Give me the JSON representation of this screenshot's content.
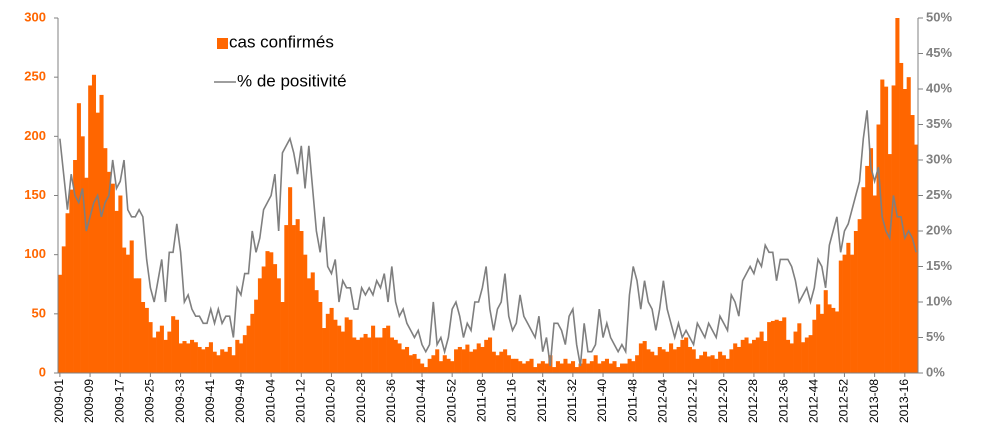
{
  "chart_data": {
    "type": "bar",
    "categories": [
      "2009-01",
      null,
      null,
      null,
      null,
      null,
      null,
      null,
      "2009-09",
      null,
      null,
      null,
      null,
      null,
      null,
      null,
      "2009-17",
      null,
      null,
      null,
      null,
      null,
      null,
      null,
      "2009-25",
      null,
      null,
      null,
      null,
      null,
      null,
      null,
      "2009-33",
      null,
      null,
      null,
      null,
      null,
      null,
      null,
      "2009-41",
      null,
      null,
      null,
      null,
      null,
      null,
      null,
      "2009-49",
      null,
      null,
      null,
      null,
      null,
      null,
      null,
      "2010-04",
      null,
      null,
      null,
      null,
      null,
      null,
      null,
      "2010-12",
      null,
      null,
      null,
      null,
      null,
      null,
      null,
      "2010-20",
      null,
      null,
      null,
      null,
      null,
      null,
      null,
      "2010-28",
      null,
      null,
      null,
      null,
      null,
      null,
      null,
      "2010-36",
      null,
      null,
      null,
      null,
      null,
      null,
      null,
      "2010-44",
      null,
      null,
      null,
      null,
      null,
      null,
      null,
      "2010-52",
      null,
      null,
      null,
      null,
      null,
      null,
      null,
      "2011-08",
      null,
      null,
      null,
      null,
      null,
      null,
      null,
      "2011-16",
      null,
      null,
      null,
      null,
      null,
      null,
      null,
      "2011-24",
      null,
      null,
      null,
      null,
      null,
      null,
      null,
      "2011-32",
      null,
      null,
      null,
      null,
      null,
      null,
      null,
      "2011-40",
      null,
      null,
      null,
      null,
      null,
      null,
      null,
      "2011-48",
      null,
      null,
      null,
      null,
      null,
      null,
      null,
      "2012-04",
      null,
      null,
      null,
      null,
      null,
      null,
      null,
      "2012-12",
      null,
      null,
      null,
      null,
      null,
      null,
      null,
      "2012-20",
      null,
      null,
      null,
      null,
      null,
      null,
      null,
      "2012-28",
      null,
      null,
      null,
      null,
      null,
      null,
      null,
      "2012-36",
      null,
      null,
      null,
      null,
      null,
      null,
      null,
      "2012-44",
      null,
      null,
      null,
      null,
      null,
      null,
      null,
      "2012-52",
      null,
      null,
      null,
      null,
      null,
      null,
      null,
      "2013-08",
      null,
      null,
      null,
      null,
      null,
      null,
      null,
      "2013-16",
      null,
      null,
      null
    ],
    "series": [
      {
        "name": "cas confirmés",
        "type": "bar",
        "color": "#ff6600",
        "values": [
          83,
          107,
          135,
          155,
          180,
          228,
          200,
          165,
          243,
          252,
          220,
          235,
          190,
          170,
          160,
          137,
          150,
          106,
          100,
          112,
          80,
          80,
          60,
          55,
          43,
          30,
          35,
          40,
          28,
          35,
          48,
          45,
          25,
          27,
          25,
          28,
          26,
          22,
          20,
          22,
          26,
          18,
          15,
          20,
          18,
          22,
          15,
          28,
          25,
          32,
          40,
          50,
          62,
          80,
          90,
          103,
          102,
          92,
          80,
          60,
          125,
          157,
          125,
          130,
          120,
          100,
          80,
          85,
          70,
          60,
          38,
          50,
          55,
          45,
          40,
          35,
          47,
          45,
          30,
          28,
          30,
          33,
          30,
          40,
          30,
          30,
          38,
          40,
          30,
          28,
          25,
          20,
          22,
          15,
          16,
          12,
          8,
          5,
          12,
          15,
          20,
          10,
          15,
          12,
          10,
          20,
          22,
          20,
          24,
          18,
          20,
          25,
          22,
          28,
          30,
          18,
          15,
          18,
          20,
          15,
          12,
          12,
          10,
          8,
          10,
          12,
          5,
          8,
          10,
          8,
          15,
          5,
          10,
          8,
          12,
          8,
          10,
          5,
          8,
          12,
          8,
          10,
          15,
          8,
          10,
          12,
          8,
          10,
          5,
          8,
          8,
          12,
          10,
          15,
          25,
          27,
          20,
          18,
          15,
          22,
          20,
          18,
          25,
          20,
          22,
          28,
          30,
          22,
          20,
          12,
          15,
          18,
          14,
          15,
          12,
          18,
          15,
          12,
          20,
          25,
          22,
          28,
          30,
          25,
          28,
          30,
          35,
          27,
          43,
          44,
          45,
          44,
          47,
          28,
          25,
          35,
          42,
          26,
          30,
          32,
          45,
          58,
          50,
          70,
          58,
          55,
          52,
          95,
          100,
          110,
          100,
          120,
          130,
          157,
          175,
          190,
          150,
          210,
          248,
          242,
          185,
          243,
          300,
          262,
          240,
          250,
          218,
          193
        ]
      },
      {
        "name": "% de positivité",
        "type": "line",
        "axis": "y2",
        "color": "#7f7f7f",
        "values": [
          33,
          28,
          23,
          28,
          25,
          24,
          26,
          20,
          22,
          24,
          25,
          22,
          24,
          25,
          30,
          26,
          27,
          30,
          23,
          22,
          22,
          23,
          22,
          16,
          12,
          10,
          13,
          16,
          10,
          17,
          17,
          21,
          17,
          10,
          11,
          9,
          8,
          8,
          7,
          7,
          9,
          7,
          9,
          7,
          8,
          8,
          5,
          12,
          11,
          14,
          14,
          20,
          17,
          19,
          23,
          24,
          25,
          28,
          20,
          31,
          32,
          33,
          31,
          28,
          32,
          26,
          32,
          26,
          20,
          17,
          22,
          15,
          14,
          16,
          10,
          13,
          12,
          12,
          9,
          9,
          12,
          11,
          12,
          11,
          13,
          12,
          14,
          10,
          15,
          10,
          8,
          9,
          7,
          6,
          5,
          6,
          4,
          3,
          4,
          10,
          4,
          5,
          3,
          5,
          9,
          10,
          8,
          5,
          7,
          6,
          10,
          10,
          12,
          15,
          9,
          6,
          9,
          10,
          14,
          8,
          6,
          7,
          11,
          8,
          7,
          6,
          5,
          8,
          3,
          5,
          1,
          7,
          7,
          6,
          4,
          8,
          9,
          4,
          1,
          7,
          3,
          3,
          4,
          9,
          5,
          7,
          5,
          4,
          3,
          4,
          3,
          11,
          15,
          13,
          9,
          13,
          10,
          9,
          6,
          9,
          13,
          9,
          7,
          5,
          7,
          5,
          6,
          5,
          4,
          7,
          6,
          5,
          7,
          6,
          5,
          8,
          7,
          6,
          11,
          10,
          8,
          13,
          14,
          15,
          14,
          16,
          15,
          18,
          17,
          17,
          13,
          16,
          16,
          16,
          15,
          13,
          10,
          11,
          12,
          10,
          12,
          16,
          15,
          12,
          18,
          20,
          22,
          17,
          20,
          21,
          23,
          25,
          27,
          33,
          37,
          29,
          27,
          29,
          22,
          20,
          19,
          25,
          22,
          22,
          19,
          20,
          19,
          17
        ]
      }
    ],
    "ylim": [
      0,
      300
    ],
    "yticks": [
      0,
      50,
      100,
      150,
      200,
      250,
      300
    ],
    "y2lim": [
      0,
      50
    ],
    "y2ticks": [
      {
        "value": 0,
        "label": "0%"
      },
      {
        "value": 5,
        "label": "5%"
      },
      {
        "value": 10,
        "label": "10%"
      },
      {
        "value": 15,
        "label": "15%"
      },
      {
        "value": 20,
        "label": "20%"
      },
      {
        "value": 25,
        "label": "25%"
      },
      {
        "value": 30,
        "label": "30%"
      },
      {
        "value": 35,
        "label": "35%"
      },
      {
        "value": 40,
        "label": "40%"
      },
      {
        "value": 45,
        "label": "45%"
      },
      {
        "value": 50,
        "label": "50%"
      }
    ],
    "grid": false,
    "legend": "top-left"
  }
}
